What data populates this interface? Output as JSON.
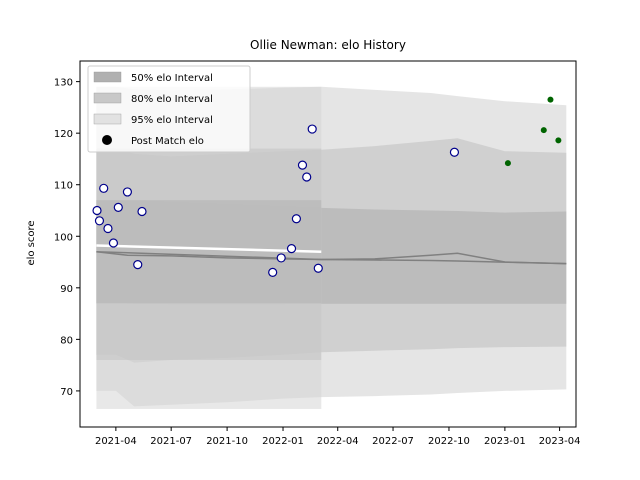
{
  "chart_data": {
    "type": "line",
    "title": "Ollie Newman: elo History",
    "xlabel": "",
    "ylabel": "elo score",
    "xlim": [
      "2021-02-01",
      "2023-04-28"
    ],
    "ylim": [
      63,
      134
    ],
    "x_ticks": [
      "2021-04",
      "2021-07",
      "2021-10",
      "2022-01",
      "2022-04",
      "2022-07",
      "2022-10",
      "2023-01",
      "2023-04"
    ],
    "y_ticks": [
      70,
      80,
      90,
      100,
      110,
      120,
      130
    ],
    "grid": false,
    "legend_position": "top-left",
    "legend": [
      {
        "label": "50% elo Interval",
        "kind": "band50"
      },
      {
        "label": "80% elo Interval",
        "kind": "band80"
      },
      {
        "label": "95% elo Interval",
        "kind": "band95"
      },
      {
        "label": "Post Match elo",
        "kind": "point"
      }
    ],
    "colors": {
      "band50": "#b0b0b0",
      "band80": "#c8c8c8",
      "band95": "#e2e2e2",
      "mean_line": "#808080",
      "point_face": "#ffffff",
      "point_edge": "#00008b",
      "future_point": "#006400",
      "white_line": "#ffffff"
    },
    "mean_series": {
      "x": [
        "2021-02-28",
        "2021-03-15",
        "2021-04-20",
        "2021-07-01",
        "2021-10-01",
        "2022-01-01",
        "2022-03-05",
        "2022-06-01",
        "2022-09-01",
        "2022-10-15",
        "2022-12-20",
        "2023-04-12"
      ],
      "y": [
        97,
        96.8,
        96.3,
        96.2,
        95.8,
        95.6,
        95.5,
        95.4,
        95.3,
        95.2,
        95.0,
        94.7
      ]
    },
    "alt_mean_series": {
      "x": [
        "2021-02-28",
        "2022-03-05",
        "2022-06-01",
        "2022-09-01",
        "2022-10-15",
        "2023-01-01",
        "2023-04-12"
      ],
      "y": [
        97,
        95.5,
        95.6,
        96.3,
        96.7,
        95.0,
        94.7
      ]
    },
    "white_line": {
      "x": [
        "2021-02-28",
        "2022-03-05"
      ],
      "y": [
        98.2,
        97.0
      ]
    },
    "bands": {
      "x": [
        "2021-02-28",
        "2021-04-01",
        "2021-05-01",
        "2021-07-01",
        "2021-10-01",
        "2022-01-01",
        "2022-03-05",
        "2022-06-01",
        "2022-09-01",
        "2022-10-15",
        "2023-01-01",
        "2023-04-12"
      ],
      "band50": {
        "lower": [
          87,
          87,
          86.9,
          86.8,
          86.8,
          86.8,
          86.9,
          86.9,
          86.9,
          86.9,
          86.9,
          86.9
        ],
        "upper": [
          107,
          107,
          107,
          106.6,
          106.2,
          105.8,
          105.5,
          105.2,
          105.0,
          104.9,
          104.6,
          104.8
        ]
      },
      "band80": {
        "lower": [
          77,
          77,
          75.5,
          76,
          76.4,
          77,
          77.5,
          77.8,
          78.1,
          78.3,
          78.5,
          78.6
        ],
        "upper": [
          117,
          117,
          116,
          115.5,
          116,
          116.5,
          116.8,
          117.5,
          118.5,
          119,
          116.5,
          116.2
        ]
      },
      "band95": {
        "lower": [
          70,
          70,
          67,
          67.3,
          67.8,
          68.5,
          68.8,
          69,
          69.3,
          69.6,
          70,
          70.3
        ],
        "upper": [
          129,
          129,
          128.5,
          128.3,
          128.5,
          128.8,
          129,
          128.4,
          127.8,
          127.2,
          126.2,
          125.4
        ]
      }
    },
    "series": [
      {
        "name": "Post Match elo",
        "x": [
          "2021-03-01",
          "2021-03-05",
          "2021-03-12",
          "2021-03-19",
          "2021-03-28",
          "2021-04-05",
          "2021-04-20",
          "2021-05-07",
          "2021-05-14",
          "2021-12-15",
          "2021-12-29",
          "2022-01-15",
          "2022-01-23",
          "2022-02-02",
          "2022-02-09",
          "2022-02-18",
          "2022-02-28",
          "2022-10-10"
        ],
        "y": [
          105.0,
          103.0,
          109.3,
          101.5,
          98.7,
          105.6,
          108.6,
          94.5,
          104.8,
          93.0,
          95.8,
          97.6,
          103.4,
          113.8,
          111.5,
          120.8,
          93.8,
          116.3
        ]
      },
      {
        "name": "",
        "x": [
          "2023-01-06",
          "2023-03-06",
          "2023-03-17",
          "2023-03-30"
        ],
        "y": [
          114.2,
          120.6,
          126.5,
          118.6
        ]
      }
    ]
  }
}
